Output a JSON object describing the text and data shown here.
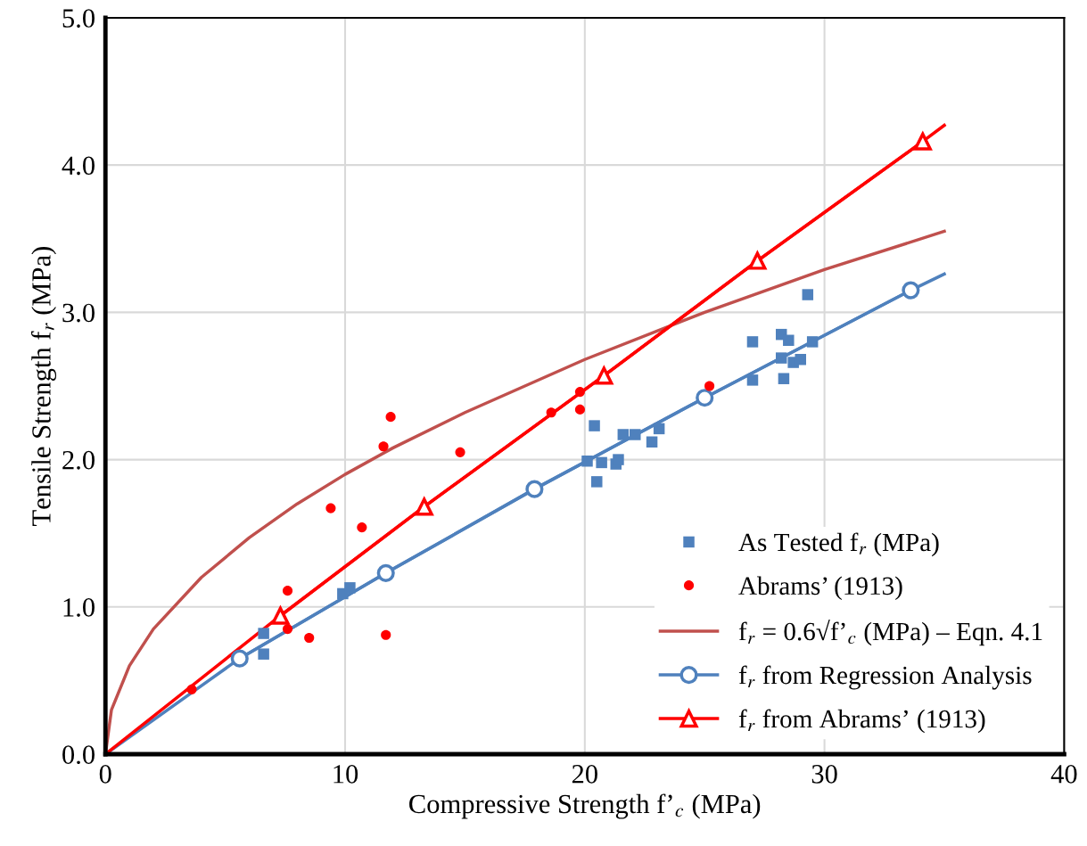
{
  "chart_data": {
    "type": "scatter",
    "xlabel": "Compressive Strength f’$_{c}$ (MPa)",
    "ylabel": "Tensile Strength f$_{r}$ (MPa)",
    "xlim": [
      0,
      40
    ],
    "xticks": [
      0,
      10,
      20,
      30,
      40
    ],
    "ylim": [
      0,
      5
    ],
    "yticks": [
      {
        "value": 0,
        "label": "0.0"
      },
      {
        "value": 1,
        "label": "1.0"
      },
      {
        "value": 2,
        "label": "2.0"
      },
      {
        "value": 3,
        "label": "3.0"
      },
      {
        "value": 4,
        "label": "4.0"
      },
      {
        "value": 5,
        "label": "5.0"
      }
    ],
    "grid": true,
    "legend": "bottom right",
    "series": [
      {
        "name": "As Tested f$_{r}$ (MPa)",
        "marker": "square",
        "color": "#4f81bd",
        "x": [
          6.6,
          6.6,
          9.9,
          10.2,
          20.1,
          20.4,
          20.5,
          20.7,
          21.3,
          21.4,
          21.6,
          22.1,
          22.8,
          23.1,
          27.0,
          27.0,
          28.2,
          28.2,
          28.3,
          28.5,
          28.7,
          29.0,
          29.3,
          29.5
        ],
        "values": [
          0.82,
          0.68,
          1.09,
          1.13,
          1.99,
          2.23,
          1.85,
          1.98,
          1.97,
          2.0,
          2.17,
          2.17,
          2.12,
          2.21,
          2.54,
          2.8,
          2.85,
          2.69,
          2.55,
          2.81,
          2.66,
          2.68,
          3.12,
          2.8
        ]
      },
      {
        "name": "Abrams’ (1913)",
        "marker": "circle",
        "color": "#ff0000",
        "x": [
          3.6,
          7.6,
          7.6,
          8.5,
          9.4,
          10.7,
          11.7,
          11.6,
          11.9,
          14.8,
          18.6,
          19.8,
          19.8,
          25.2
        ],
        "values": [
          0.44,
          0.85,
          1.11,
          0.79,
          1.67,
          1.54,
          0.81,
          2.09,
          2.29,
          2.05,
          2.32,
          2.46,
          2.34,
          2.5
        ]
      },
      {
        "name": "f$_{r}$ = 0.6√f’$_{c}$ (MPa) – Eqn. 4.1",
        "type": "line",
        "marker": "none",
        "color": "#c0504d",
        "x": [
          0,
          0.25,
          1,
          2,
          4,
          6,
          8,
          10,
          12,
          15,
          20,
          25,
          30,
          35
        ],
        "values": [
          0,
          0.3,
          0.6,
          0.85,
          1.2,
          1.47,
          1.7,
          1.9,
          2.08,
          2.32,
          2.68,
          3.0,
          3.29,
          3.55
        ]
      },
      {
        "name": "f$_{r}$ from Regression Analysis",
        "type": "line",
        "marker": "circle",
        "color": "#4f81bd",
        "x": [
          5.6,
          11.7,
          17.9,
          25.0,
          33.6
        ],
        "values": [
          0.65,
          1.23,
          1.8,
          2.42,
          3.15
        ]
      },
      {
        "name": "f$_{r}$ from Abrams’ (1913)",
        "type": "line",
        "marker": "triangle",
        "color": "#ff0000",
        "x": [
          7.3,
          13.3,
          20.8,
          27.2,
          34.1
        ],
        "values": [
          0.94,
          1.68,
          2.57,
          3.35,
          4.16
        ]
      },
      {
        "type": "line",
        "marker": "none",
        "color": "#4f81bd",
        "x": [
          0,
          5.6,
          11.7,
          17.9,
          25.0,
          33.6,
          35
        ],
        "values": [
          0,
          0.65,
          1.23,
          1.8,
          2.42,
          3.15,
          3.26
        ]
      },
      {
        "type": "line",
        "marker": "none",
        "color": "#ff0000",
        "x": [
          0,
          7.3,
          13.3,
          20.8,
          27.2,
          34.1,
          35
        ],
        "values": [
          0,
          0.94,
          1.68,
          2.57,
          3.35,
          4.16,
          4.27
        ]
      }
    ]
  }
}
